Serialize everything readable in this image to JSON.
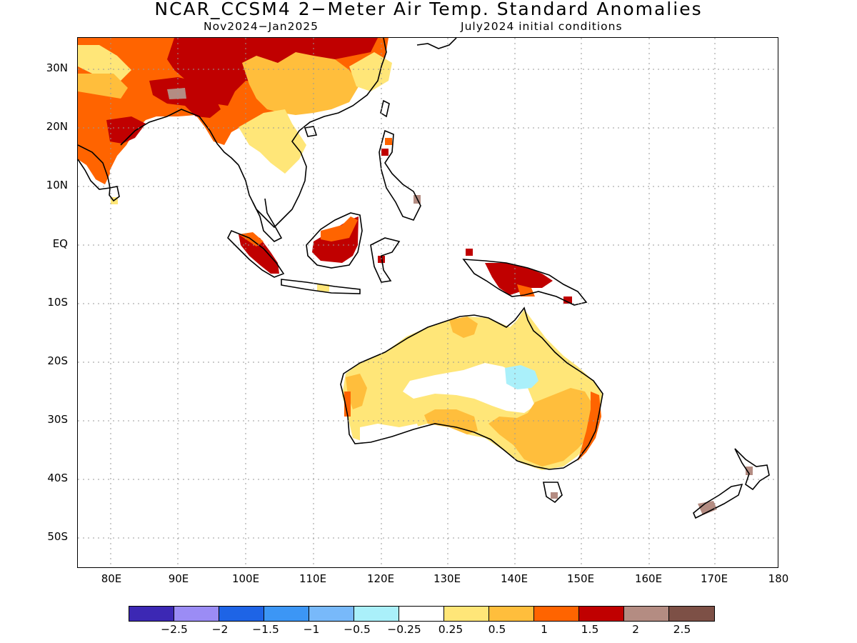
{
  "header": {
    "title": "NCAR_CCSM4 2−Meter Air Temp. Standard Anomalies",
    "period": "Nov2024−Jan2025",
    "init": "July2024 initial conditions"
  },
  "axes": {
    "lat_labels": [
      "30N",
      "20N",
      "10N",
      "EQ",
      "10S",
      "20S",
      "30S",
      "40S",
      "50S"
    ],
    "lon_labels": [
      "80E",
      "90E",
      "100E",
      "110E",
      "120E",
      "130E",
      "140E",
      "150E",
      "160E",
      "170E",
      "180"
    ]
  },
  "colorbar": {
    "colors": [
      "#3c28b4",
      "#9b8cf5",
      "#1e64e6",
      "#3c96f5",
      "#78b9fa",
      "#aaf0fa",
      "#ffffff",
      "#ffe678",
      "#ffbe3c",
      "#ff6400",
      "#c00000",
      "#b48c82",
      "#7d5046"
    ],
    "labels": [
      "−2.5",
      "−2",
      "−1.5",
      "−1",
      "−0.5",
      "−0.25",
      "0.25",
      "0.5",
      "1",
      "1.5",
      "2",
      "2.5"
    ]
  }
}
